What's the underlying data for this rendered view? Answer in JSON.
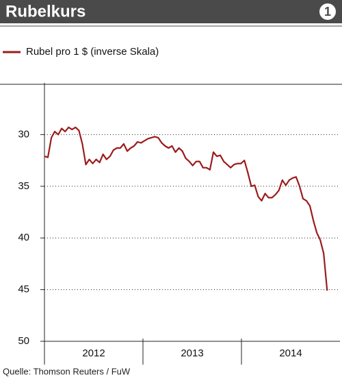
{
  "title": "Rubelkurs",
  "badge": "1",
  "chart_data": {
    "type": "line",
    "categories": [
      "2012",
      "2013",
      "2014"
    ],
    "xlim": [
      2012,
      2015
    ],
    "xticks": [
      2013,
      2014
    ],
    "ylim": [
      25,
      50
    ],
    "yticks": [
      30,
      35,
      40,
      45,
      50
    ],
    "y_inverted": true,
    "grid": true,
    "series": [
      {
        "name": "Rubel pro 1 $ (inverse Skala)",
        "color": "#9b1b1b",
        "x": [
          2012.0,
          2012.035,
          2012.07,
          2012.105,
          2012.14,
          2012.175,
          2012.21,
          2012.245,
          2012.28,
          2012.315,
          2012.35,
          2012.385,
          2012.42,
          2012.455,
          2012.49,
          2012.525,
          2012.56,
          2012.595,
          2012.63,
          2012.665,
          2012.7,
          2012.735,
          2012.77,
          2012.805,
          2012.84,
          2012.875,
          2012.91,
          2012.945,
          2012.98,
          2013.015,
          2013.05,
          2013.085,
          2013.12,
          2013.155,
          2013.19,
          2013.225,
          2013.26,
          2013.295,
          2013.33,
          2013.365,
          2013.4,
          2013.435,
          2013.47,
          2013.505,
          2013.54,
          2013.575,
          2013.61,
          2013.645,
          2013.68,
          2013.715,
          2013.75,
          2013.785,
          2013.82,
          2013.855,
          2013.89,
          2013.925,
          2013.96,
          2013.995,
          2014.03,
          2014.065,
          2014.1,
          2014.135,
          2014.17,
          2014.205,
          2014.24,
          2014.275,
          2014.31,
          2014.345,
          2014.38,
          2014.415,
          2014.45,
          2014.485,
          2014.52,
          2014.555,
          2014.59,
          2014.625,
          2014.66,
          2014.695,
          2014.73,
          2014.765,
          2014.8,
          2014.835,
          2014.87
        ],
        "values": [
          32.1,
          32.2,
          30.3,
          29.7,
          30.0,
          29.4,
          29.7,
          29.3,
          29.5,
          29.3,
          29.6,
          30.9,
          32.9,
          32.4,
          32.8,
          32.4,
          32.7,
          31.9,
          32.4,
          32.1,
          31.5,
          31.3,
          31.3,
          30.9,
          31.6,
          31.3,
          31.1,
          30.7,
          30.8,
          30.6,
          30.4,
          30.3,
          30.2,
          30.3,
          30.8,
          31.1,
          31.3,
          31.1,
          31.7,
          31.3,
          31.6,
          32.3,
          32.6,
          33.0,
          32.6,
          32.6,
          33.2,
          33.2,
          33.4,
          31.7,
          32.1,
          32.0,
          32.6,
          32.9,
          33.2,
          32.9,
          32.8,
          32.8,
          32.5,
          33.7,
          35.0,
          34.9,
          36.0,
          36.4,
          35.7,
          36.1,
          36.1,
          35.8,
          35.4,
          34.4,
          34.9,
          34.4,
          34.2,
          34.1,
          35.0,
          36.2,
          36.4,
          36.9,
          38.3,
          39.5,
          40.2,
          41.5,
          45.1
        ]
      }
    ]
  },
  "source": "Quelle: Thomson Reuters / FuW"
}
